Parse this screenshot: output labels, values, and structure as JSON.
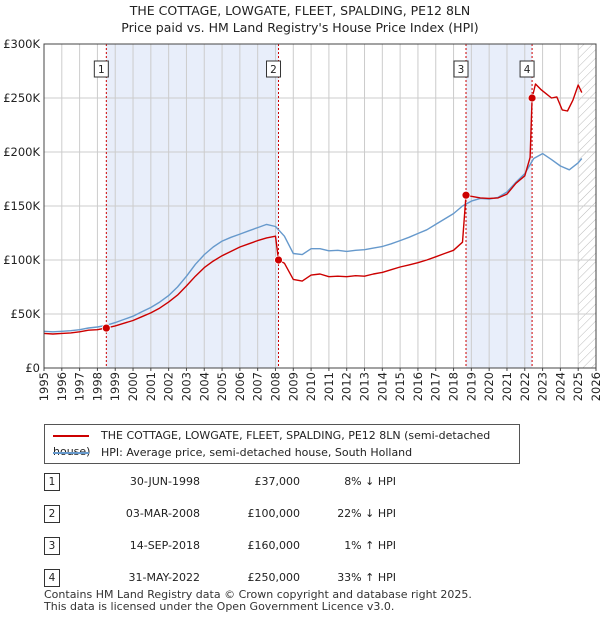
{
  "title_line1": "THE COTTAGE, LOWGATE, FLEET, SPALDING, PE12 8LN",
  "title_line2": "Price paid vs. HM Land Registry's House Price Index (HPI)",
  "colors": {
    "property": "#cc0000",
    "hpi": "#6699cc",
    "shade": "#e8eefa",
    "marker_line": "#cc0000",
    "grid": "#cccccc"
  },
  "legend": {
    "property_label": "THE COTTAGE, LOWGATE, FLEET, SPALDING, PE12 8LN (semi-detached house)",
    "hpi_label": "HPI: Average price, semi-detached house, South Holland"
  },
  "chart_data": {
    "type": "line",
    "title": "THE COTTAGE, LOWGATE, FLEET, SPALDING, PE12 8LN",
    "subtitle": "Price paid vs. HM Land Registry's House Price Index (HPI)",
    "xlim": [
      1995,
      2026
    ],
    "ylim": [
      0,
      300000
    ],
    "x_ticks": [
      1995,
      1996,
      1997,
      1998,
      1999,
      2000,
      2001,
      2002,
      2003,
      2004,
      2005,
      2006,
      2007,
      2008,
      2009,
      2010,
      2011,
      2012,
      2013,
      2014,
      2015,
      2016,
      2017,
      2018,
      2019,
      2020,
      2021,
      2022,
      2023,
      2024,
      2025,
      2026
    ],
    "x_tick_labels": [
      "1995",
      "1996",
      "1997",
      "1998",
      "1999",
      "2000",
      "2001",
      "2002",
      "2003",
      "2004",
      "2005",
      "2006",
      "2007",
      "2008",
      "2009",
      "2010",
      "2011",
      "2012",
      "2013",
      "2014",
      "2015",
      "2016",
      "2017",
      "2018",
      "2019",
      "2020",
      "2021",
      "2022",
      "2023",
      "2024",
      "2025",
      "2026"
    ],
    "y_ticks": [
      0,
      50000,
      100000,
      150000,
      200000,
      250000,
      300000
    ],
    "y_tick_labels": [
      "£0",
      "£50K",
      "£100K",
      "£150K",
      "£200K",
      "£250K",
      "£300K"
    ],
    "grid": true,
    "shaded_ranges": [
      [
        1998.5,
        2008.17
      ],
      [
        2018.7,
        2022.41
      ]
    ],
    "hatched_after": 2025.0,
    "series": [
      {
        "name": "THE COTTAGE, LOWGATE, FLEET, SPALDING, PE12 8LN (semi-detached house)",
        "x": [
          1995.0,
          1995.5,
          1996.0,
          1996.5,
          1997.0,
          1997.5,
          1998.0,
          1998.5,
          1999.0,
          1999.5,
          2000.0,
          2000.5,
          2001.0,
          2001.5,
          2002.0,
          2002.5,
          2003.0,
          2003.5,
          2004.0,
          2004.5,
          2005.0,
          2005.5,
          2006.0,
          2006.5,
          2007.0,
          2007.5,
          2008.0,
          2008.17,
          2008.5,
          2009.0,
          2009.5,
          2010.0,
          2010.5,
          2011.0,
          2011.5,
          2012.0,
          2012.5,
          2013.0,
          2013.5,
          2014.0,
          2014.5,
          2015.0,
          2015.5,
          2016.0,
          2016.5,
          2017.0,
          2017.5,
          2018.0,
          2018.5,
          2018.7,
          2019.0,
          2019.5,
          2020.0,
          2020.5,
          2021.0,
          2021.5,
          2022.0,
          2022.3,
          2022.41,
          2022.6,
          2022.9,
          2023.2,
          2023.5,
          2023.8,
          2024.1,
          2024.4,
          2024.7,
          2025.0,
          2025.2
        ],
        "values": [
          32000,
          31500,
          32000,
          32500,
          33500,
          35000,
          35500,
          37000,
          39000,
          41500,
          44000,
          47500,
          51000,
          55500,
          61000,
          67500,
          76000,
          85000,
          93000,
          99000,
          104000,
          108000,
          112000,
          115000,
          118000,
          120500,
          122000,
          100000,
          97000,
          82000,
          80500,
          86000,
          87000,
          84500,
          85000,
          84500,
          85500,
          85000,
          87000,
          88500,
          91000,
          93500,
          95500,
          97500,
          100000,
          103000,
          106000,
          109000,
          116500,
          160000,
          159000,
          157500,
          157000,
          157500,
          161000,
          171000,
          178000,
          195000,
          250000,
          263000,
          258000,
          254000,
          250000,
          251000,
          239000,
          238000,
          248000,
          262000,
          255000
        ]
      },
      {
        "name": "HPI: Average price, semi-detached house, South Holland",
        "x": [
          1995.0,
          1995.5,
          1996.0,
          1996.5,
          1997.0,
          1997.5,
          1998.0,
          1998.5,
          1999.0,
          1999.5,
          2000.0,
          2000.5,
          2001.0,
          2001.5,
          2002.0,
          2002.5,
          2003.0,
          2003.5,
          2004.0,
          2004.5,
          2005.0,
          2005.5,
          2006.0,
          2006.5,
          2007.0,
          2007.5,
          2008.0,
          2008.5,
          2009.0,
          2009.5,
          2010.0,
          2010.5,
          2011.0,
          2011.5,
          2012.0,
          2012.5,
          2013.0,
          2013.5,
          2014.0,
          2014.5,
          2015.0,
          2015.5,
          2016.0,
          2016.5,
          2017.0,
          2017.5,
          2018.0,
          2018.5,
          2019.0,
          2019.5,
          2020.0,
          2020.5,
          2021.0,
          2021.5,
          2022.0,
          2022.5,
          2023.0,
          2023.5,
          2024.0,
          2024.5,
          2025.0,
          2025.2
        ],
        "values": [
          34000,
          33500,
          34000,
          34500,
          35500,
          37000,
          38000,
          39500,
          42000,
          45000,
          48000,
          52000,
          56000,
          61000,
          67000,
          75000,
          85000,
          96000,
          105000,
          112000,
          117500,
          121000,
          124000,
          127000,
          130000,
          133000,
          131000,
          122000,
          106000,
          105000,
          110500,
          110500,
          108500,
          109000,
          108000,
          109000,
          109500,
          111000,
          112500,
          115000,
          118000,
          121000,
          124500,
          128000,
          133000,
          138000,
          143000,
          150000,
          154500,
          157000,
          156500,
          158000,
          163000,
          172000,
          180000,
          194000,
          198500,
          193000,
          187000,
          183500,
          190000,
          194000
        ]
      }
    ],
    "markers": [
      {
        "label": "1",
        "x": 1998.5,
        "y": 37000
      },
      {
        "label": "2",
        "x": 2008.17,
        "y": 100000
      },
      {
        "label": "3",
        "x": 2018.7,
        "y": 160000
      },
      {
        "label": "4",
        "x": 2022.41,
        "y": 250000
      }
    ]
  },
  "transactions": [
    {
      "num": "1",
      "date": "30-JUN-1998",
      "price": "£37,000",
      "hpi": "8% ↓ HPI"
    },
    {
      "num": "2",
      "date": "03-MAR-2008",
      "price": "£100,000",
      "hpi": "22% ↓ HPI"
    },
    {
      "num": "3",
      "date": "14-SEP-2018",
      "price": "£160,000",
      "hpi": "1% ↑ HPI"
    },
    {
      "num": "4",
      "date": "31-MAY-2022",
      "price": "£250,000",
      "hpi": "33% ↑ HPI"
    }
  ],
  "footer": {
    "line1": "Contains HM Land Registry data © Crown copyright and database right 2025.",
    "line2": "This data is licensed under the Open Government Licence v3.0."
  }
}
